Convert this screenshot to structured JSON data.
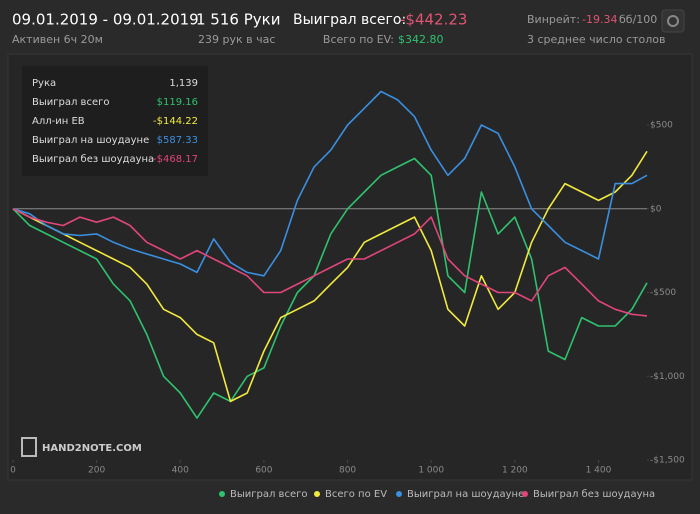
{
  "header": {
    "date_range": "09.01.2019 - 09.01.2019",
    "active": "Активен 6ч 20м",
    "hands": "1 516 Руки",
    "hands_per_hour": "239 рук в час",
    "won_label": "Выиграл всего:",
    "won_value": "-$442.23",
    "ev_label": "Всего по EV:",
    "ev_value": "$342.80",
    "winrate_label": "Винрейт:",
    "winrate_value": "-19.34",
    "winrate_unit": "бб/100",
    "tables": "3 среднее число столов"
  },
  "tooltip": {
    "rows": [
      [
        "Рука",
        "1,139"
      ],
      [
        "Выиграл всего",
        "$119.16"
      ],
      [
        "Алл-ин EB",
        "-$144.22"
      ],
      [
        "Выиграл на шоудауне",
        "$587.33"
      ],
      [
        "Выиграл без шоудауна",
        "-$468.17"
      ]
    ]
  },
  "logo": "HAND2NOTE.COM",
  "chart_data": {
    "type": "line",
    "x": [
      0,
      40,
      80,
      120,
      160,
      200,
      240,
      280,
      320,
      360,
      400,
      440,
      480,
      520,
      560,
      600,
      640,
      680,
      720,
      760,
      800,
      840,
      880,
      920,
      960,
      1000,
      1040,
      1080,
      1120,
      1160,
      1200,
      1240,
      1280,
      1320,
      1360,
      1400,
      1440,
      1480,
      1516
    ],
    "series": [
      {
        "name": "Выиграл всего",
        "color": "#2fc26e",
        "values": [
          0,
          -100,
          -150,
          -200,
          -250,
          -300,
          -450,
          -550,
          -750,
          -1000,
          -1100,
          -1250,
          -1100,
          -1150,
          -1000,
          -950,
          -700,
          -500,
          -400,
          -150,
          0,
          100,
          200,
          250,
          300,
          200,
          -400,
          -500,
          100,
          -150,
          -50,
          -300,
          -850,
          -900,
          -650,
          -700,
          -700,
          -600,
          -442
        ]
      },
      {
        "name": "Всего по EV",
        "color": "#f2e93f",
        "values": [
          0,
          -50,
          -100,
          -150,
          -200,
          -250,
          -300,
          -350,
          -450,
          -600,
          -650,
          -750,
          -800,
          -1150,
          -1100,
          -850,
          -650,
          -600,
          -550,
          -450,
          -350,
          -200,
          -150,
          -100,
          -50,
          -250,
          -600,
          -700,
          -400,
          -600,
          -500,
          -200,
          0,
          150,
          100,
          50,
          100,
          200,
          343
        ]
      },
      {
        "name": "Выиграл на шоудауне",
        "color": "#3a8fe0",
        "values": [
          0,
          -30,
          -100,
          -150,
          -160,
          -150,
          -200,
          -240,
          -270,
          -300,
          -330,
          -380,
          -180,
          -320,
          -380,
          -400,
          -250,
          50,
          250,
          350,
          500,
          600,
          700,
          650,
          550,
          350,
          200,
          300,
          500,
          450,
          250,
          0,
          -100,
          -200,
          -250,
          -300,
          150,
          150,
          200
        ]
      },
      {
        "name": "Выиграл без шоудауна",
        "color": "#e0457b",
        "values": [
          0,
          -50,
          -80,
          -100,
          -50,
          -80,
          -50,
          -100,
          -200,
          -250,
          -300,
          -250,
          -300,
          -350,
          -400,
          -500,
          -500,
          -450,
          -400,
          -350,
          -300,
          -300,
          -250,
          -200,
          -150,
          -50,
          -300,
          -400,
          -450,
          -500,
          -500,
          -550,
          -400,
          -350,
          -450,
          -550,
          -600,
          -630,
          -640
        ]
      }
    ],
    "xlim": [
      0,
      1516
    ],
    "ylim": [
      -1500,
      900
    ],
    "xticks": [
      0,
      200,
      400,
      600,
      800,
      {
        "value": 1000,
        "label": "1 000"
      },
      {
        "value": 1200,
        "label": "1 200"
      },
      {
        "value": 1400,
        "label": "1 400"
      }
    ],
    "yticks": [
      {
        "value": 500,
        "label": "$500"
      },
      {
        "value": 0,
        "label": "$0"
      },
      {
        "value": -500,
        "label": "-$500"
      },
      {
        "value": -1000,
        "label": "-$1,000"
      },
      {
        "value": -1500,
        "label": "-$1,500"
      }
    ],
    "legend": "bottom"
  }
}
